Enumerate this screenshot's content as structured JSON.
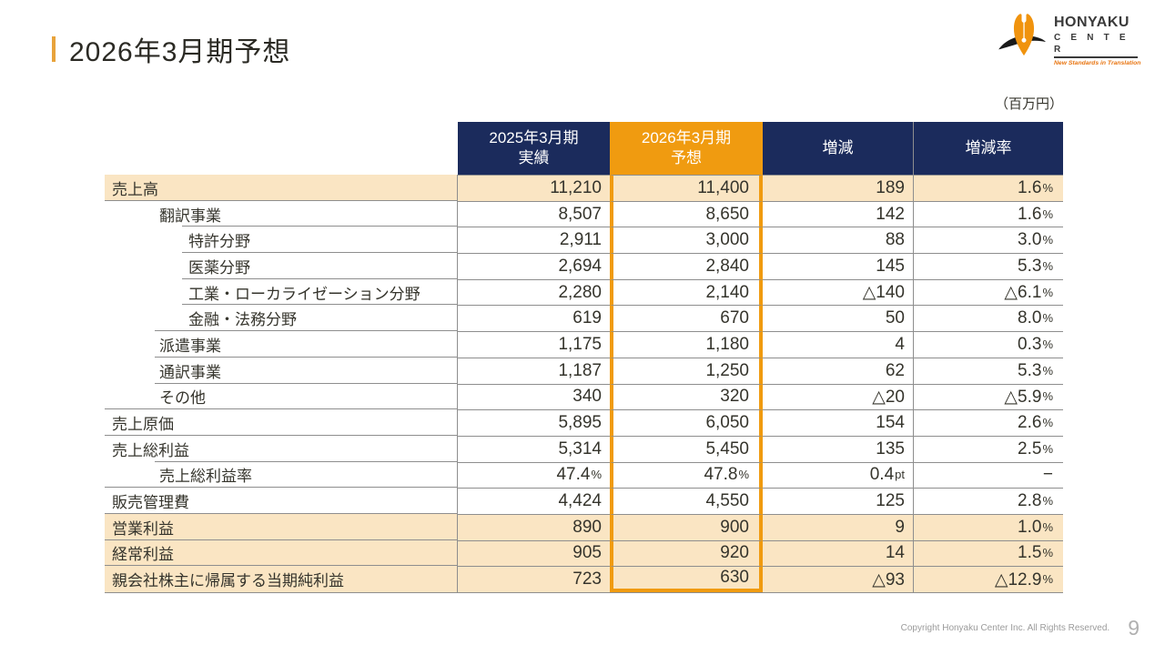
{
  "title": "2026年3月期予想",
  "unit_label": "（百万円）",
  "logo": {
    "name": "HONYAKU",
    "name2": "C E N T E R",
    "tagline": "New Standards in Translation"
  },
  "footer": {
    "copyright": "Copyright Honyaku Center Inc. All Rights Reserved.",
    "page_number": "9"
  },
  "colors": {
    "navy_header": "#1b2b5c",
    "orange_highlight": "#f09b10",
    "beige_row": "#fae5c3",
    "accent_bar": "#e8a33b",
    "grid_line": "#8e8e8e"
  },
  "table": {
    "columns": [
      "2025年3月期\n実績",
      "2026年3月期\n予想",
      "増減",
      "増減率"
    ],
    "rows": [
      {
        "label": "売上高",
        "indent": 0,
        "highlight": true,
        "values": [
          "11,210",
          "11,400",
          "189",
          "1.6%"
        ]
      },
      {
        "label": "翻訳事業",
        "indent": 1,
        "highlight": false,
        "values": [
          "8,507",
          "8,650",
          "142",
          "1.6%"
        ]
      },
      {
        "label": "特許分野",
        "indent": 2,
        "highlight": false,
        "values": [
          "2,911",
          "3,000",
          "88",
          "3.0%"
        ]
      },
      {
        "label": "医薬分野",
        "indent": 2,
        "highlight": false,
        "values": [
          "2,694",
          "2,840",
          "145",
          "5.3%"
        ]
      },
      {
        "label": "工業・ローカライゼーション分野",
        "indent": 2,
        "highlight": false,
        "values": [
          "2,280",
          "2,140",
          "△140",
          "△6.1%"
        ]
      },
      {
        "label": "金融・法務分野",
        "indent": 2,
        "highlight": false,
        "values": [
          "619",
          "670",
          "50",
          "8.0%"
        ]
      },
      {
        "label": "派遣事業",
        "indent": 1,
        "highlight": false,
        "values": [
          "1,175",
          "1,180",
          "4",
          "0.3%"
        ]
      },
      {
        "label": "通訳事業",
        "indent": 1,
        "highlight": false,
        "values": [
          "1,187",
          "1,250",
          "62",
          "5.3%"
        ]
      },
      {
        "label": "その他",
        "indent": 1,
        "highlight": false,
        "values": [
          "340",
          "320",
          "△20",
          "△5.9%"
        ]
      },
      {
        "label": "売上原価",
        "indent": 0,
        "highlight": false,
        "values": [
          "5,895",
          "6,050",
          "154",
          "2.6%"
        ]
      },
      {
        "label": "売上総利益",
        "indent": 0,
        "highlight": false,
        "values": [
          "5,314",
          "5,450",
          "135",
          "2.5%"
        ]
      },
      {
        "label": "売上総利益率",
        "indent": 1,
        "highlight": false,
        "values": [
          "47.4%",
          "47.8%",
          "0.4pt",
          "−"
        ]
      },
      {
        "label": "販売管理費",
        "indent": 0,
        "highlight": false,
        "values": [
          "4,424",
          "4,550",
          "125",
          "2.8%"
        ]
      },
      {
        "label": "営業利益",
        "indent": 0,
        "highlight": true,
        "values": [
          "890",
          "900",
          "9",
          "1.0%"
        ]
      },
      {
        "label": "経常利益",
        "indent": 0,
        "highlight": true,
        "values": [
          "905",
          "920",
          "14",
          "1.5%"
        ]
      },
      {
        "label": "親会社株主に帰属する当期純利益",
        "indent": 0,
        "highlight": true,
        "values": [
          "723",
          "630",
          "△93",
          "△12.9%"
        ]
      }
    ]
  }
}
